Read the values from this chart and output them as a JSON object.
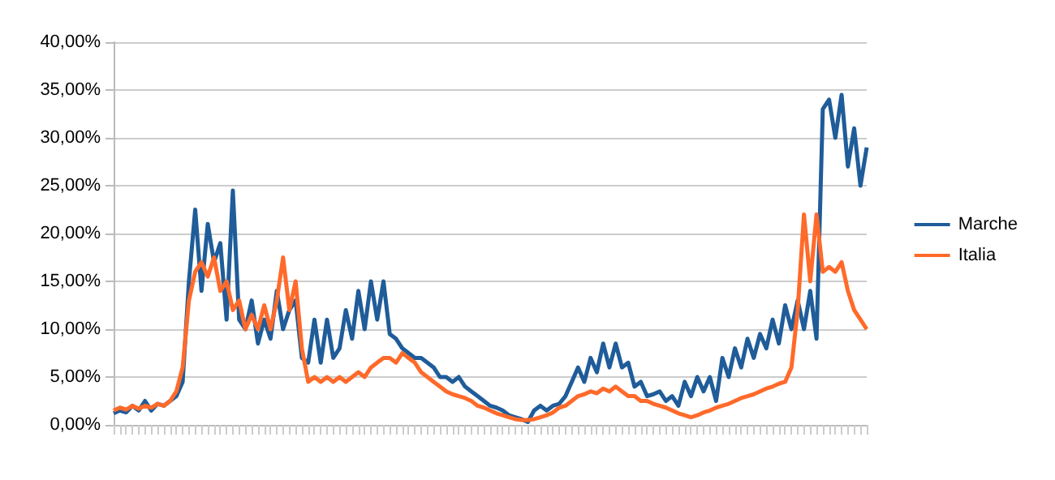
{
  "chart_data": {
    "type": "line",
    "categories": [
      null,
      null,
      null,
      null,
      null,
      null,
      null,
      null,
      null,
      null,
      null,
      null,
      null,
      null,
      null,
      null,
      null,
      null,
      null,
      null,
      null,
      null,
      null,
      null,
      null,
      null,
      null,
      null,
      null,
      null,
      null,
      null,
      null,
      null,
      null,
      null,
      null,
      null,
      null,
      null,
      null,
      null,
      null,
      null,
      null,
      null,
      null,
      null,
      null,
      null,
      null,
      null,
      null,
      null,
      null,
      null,
      null,
      null,
      null,
      null,
      null,
      null,
      null,
      null,
      null,
      null,
      null,
      null,
      null,
      null,
      null,
      null,
      null,
      null,
      null,
      null,
      null,
      null,
      null,
      null,
      null,
      null,
      null,
      null,
      null,
      null,
      null,
      null,
      null,
      null,
      null,
      null,
      null,
      null,
      null,
      null,
      null,
      null,
      null,
      null,
      null,
      null,
      null,
      null,
      null,
      null,
      null,
      null,
      null,
      null,
      null,
      null,
      null,
      null,
      null,
      null,
      null,
      null,
      null,
      null,
      null
    ],
    "series": [
      {
        "name": "Marche",
        "color": "#1f5c99",
        "values": [
          1.2,
          1.5,
          1.3,
          2,
          1.5,
          2.5,
          1.5,
          2.2,
          2,
          2.5,
          3,
          4.5,
          15,
          22.5,
          14,
          21,
          17,
          19,
          11,
          24.5,
          11,
          10,
          13,
          8.5,
          11,
          9,
          14,
          10,
          12,
          13,
          7,
          6.5,
          11,
          6.5,
          11,
          7,
          8,
          12,
          9,
          14,
          10,
          15,
          11,
          15,
          9.5,
          9,
          8,
          7.5,
          7,
          7,
          6.5,
          6,
          5,
          5,
          4.5,
          5,
          4,
          3.5,
          3,
          2.5,
          2,
          1.8,
          1.5,
          1,
          0.8,
          0.6,
          0.3,
          1.5,
          2,
          1.5,
          2,
          2.2,
          3,
          4.5,
          6,
          4.5,
          7,
          5.5,
          8.5,
          6,
          8.5,
          6,
          6.5,
          4,
          4.5,
          3,
          3.2,
          3.5,
          2.5,
          3,
          2,
          4.5,
          3,
          5,
          3.5,
          5,
          2.5,
          7,
          5,
          8,
          6,
          9,
          7,
          9.5,
          8,
          11,
          8.5,
          12.5,
          10,
          13,
          10,
          14,
          9,
          33,
          34,
          30,
          34.5,
          27,
          31,
          25,
          29
        ]
      },
      {
        "name": "Italia",
        "color": "#ff6a2a",
        "values": [
          1.5,
          1.8,
          1.6,
          2,
          1.7,
          2,
          1.8,
          2.2,
          2,
          2.5,
          3.5,
          6,
          13,
          16,
          17,
          15.5,
          17.5,
          14,
          15,
          12,
          13,
          10,
          11.5,
          10,
          12.5,
          10,
          13,
          17.5,
          12,
          15,
          8,
          4.5,
          5,
          4.5,
          5,
          4.5,
          5,
          4.5,
          5,
          5.5,
          5,
          6,
          6.5,
          7,
          7,
          6.5,
          7.5,
          7,
          6.5,
          5.5,
          5,
          4.5,
          4,
          3.5,
          3.2,
          3,
          2.8,
          2.5,
          2,
          1.8,
          1.5,
          1.2,
          1,
          0.8,
          0.6,
          0.5,
          0.5,
          0.6,
          0.8,
          1,
          1.3,
          1.8,
          2,
          2.5,
          3,
          3.2,
          3.5,
          3.3,
          3.8,
          3.5,
          4,
          3.5,
          3,
          3,
          2.5,
          2.5,
          2.2,
          2,
          1.8,
          1.5,
          1.2,
          1,
          0.8,
          1,
          1.3,
          1.5,
          1.8,
          2,
          2.2,
          2.5,
          2.8,
          3,
          3.2,
          3.5,
          3.8,
          4,
          4.3,
          4.5,
          6,
          12,
          22,
          15,
          22,
          16,
          16.5,
          16,
          17,
          14,
          12,
          11,
          10
        ]
      }
    ],
    "ylim": [
      0,
      40
    ],
    "yticks": [
      {
        "value": 0,
        "label": "0,00%"
      },
      {
        "value": 5,
        "label": "5,00%"
      },
      {
        "value": 10,
        "label": "10,00%"
      },
      {
        "value": 15,
        "label": "15,00%"
      },
      {
        "value": 20,
        "label": "20,00%"
      },
      {
        "value": 25,
        "label": "25,00%"
      },
      {
        "value": 30,
        "label": "30,00%"
      },
      {
        "value": 35,
        "label": "35,00%"
      },
      {
        "value": 40,
        "label": "40,00%"
      }
    ],
    "grid": "y",
    "legend": "right",
    "marker": "none",
    "line_style": "solid"
  }
}
